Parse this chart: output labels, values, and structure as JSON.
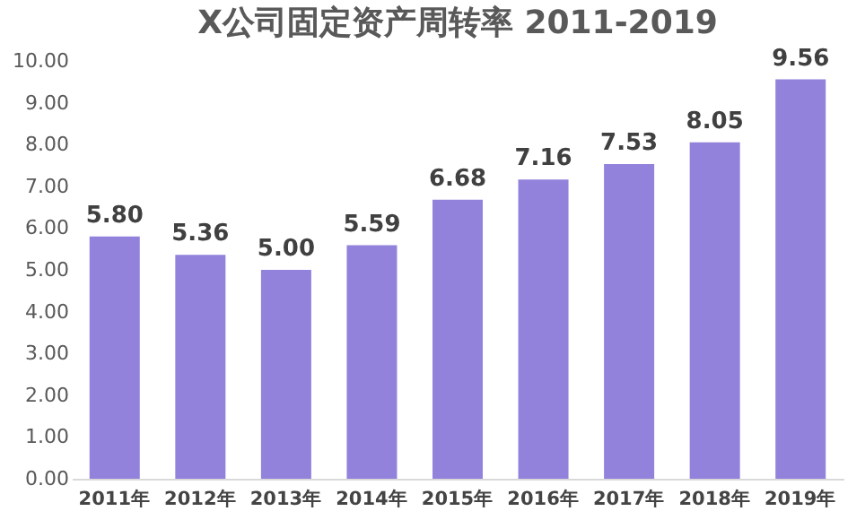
{
  "chart_data": {
    "type": "bar",
    "title": "X公司固定资产周转率 2011-2019",
    "categories": [
      "2011年",
      "2012年",
      "2013年",
      "2014年",
      "2015年",
      "2016年",
      "2017年",
      "2018年",
      "2019年"
    ],
    "values": [
      5.8,
      5.36,
      5.0,
      5.59,
      6.68,
      7.16,
      7.53,
      8.05,
      9.56
    ],
    "value_labels": [
      "5.80",
      "5.36",
      "5.00",
      "5.59",
      "6.68",
      "7.16",
      "7.53",
      "8.05",
      "9.56"
    ],
    "color": "#9282dc",
    "ylim": [
      0,
      10
    ],
    "yticks": [
      {
        "value": 0,
        "label": "0.00"
      },
      {
        "value": 1,
        "label": "1.00"
      },
      {
        "value": 2,
        "label": "2.00"
      },
      {
        "value": 3,
        "label": "3.00"
      },
      {
        "value": 4,
        "label": "4.00"
      },
      {
        "value": 5,
        "label": "5.00"
      },
      {
        "value": 6,
        "label": "6.00"
      },
      {
        "value": 7,
        "label": "7.00"
      },
      {
        "value": 8,
        "label": "8.00"
      },
      {
        "value": 9,
        "label": "9.00"
      },
      {
        "value": 10,
        "label": "10.00"
      }
    ],
    "grid": false
  }
}
